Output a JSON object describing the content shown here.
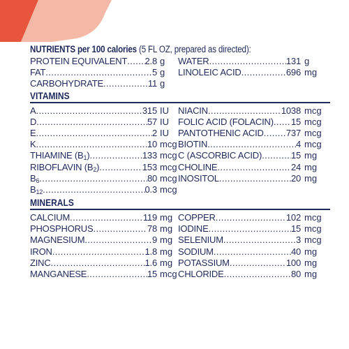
{
  "colors": {
    "text": "#1f2a5c",
    "accent": "#e8553f",
    "accent_light": "#f6c9b8"
  },
  "title": {
    "bold": "NUTRIENTS per 100 calories",
    "sub": " (5 FL OZ, prepared as directed):"
  },
  "nutrients": {
    "left": [
      {
        "name": "PROTEIN EQUIVALENT",
        "value": "2.8",
        "unit": "g"
      },
      {
        "name": "FAT",
        "value": "5",
        "unit": "g"
      },
      {
        "name": "CARBOHYDRATE",
        "value": "11",
        "unit": "g"
      }
    ],
    "right": [
      {
        "name": "WATER",
        "value": "131",
        "unit": "g"
      },
      {
        "name": "LINOLEIC ACID",
        "value": "696",
        "unit": "mg"
      }
    ]
  },
  "vitamins": {
    "heading": "VITAMINS",
    "left": [
      {
        "name": "A",
        "value": "315",
        "unit": "IU"
      },
      {
        "name": "D",
        "value": "57",
        "unit": "IU"
      },
      {
        "name": "E",
        "value": "2",
        "unit": "IU"
      },
      {
        "name": "K",
        "value": "10",
        "unit": "mcg"
      },
      {
        "name": "THIAMINE (B",
        "sub": "1",
        "name_end": ")",
        "value": "133",
        "unit": "mcg"
      },
      {
        "name": "RIBOFLAVIN (B",
        "sub": "2",
        "name_end": ")",
        "value": "153",
        "unit": "mcg"
      },
      {
        "name": "B",
        "sub": "6",
        "name_end": "",
        "value": "80",
        "unit": "mcg"
      },
      {
        "name": "B",
        "sub": "12",
        "name_end": "",
        "value": "0.3",
        "unit": "mcg"
      }
    ],
    "right": [
      {
        "name": "NIACIN",
        "value": "1038",
        "unit": "mcg"
      },
      {
        "name": "FOLIC ACID (FOLACIN)",
        "value": "15",
        "unit": "mcg"
      },
      {
        "name": "PANTOTHENIC ACID",
        "value": "737",
        "unit": "mcg"
      },
      {
        "name": "BIOTIN",
        "value": "4",
        "unit": "mcg"
      },
      {
        "name": "C (ASCORBIC ACID)",
        "value": "15",
        "unit": "mg"
      },
      {
        "name": "CHOLINE",
        "value": "24",
        "unit": "mg"
      },
      {
        "name": "INOSITOL",
        "value": "20",
        "unit": "mg"
      }
    ]
  },
  "minerals": {
    "heading": "MINERALS",
    "left": [
      {
        "name": "CALCIUM",
        "value": "119",
        "unit": "mg"
      },
      {
        "name": "PHOSPHORUS",
        "value": "78",
        "unit": "mg"
      },
      {
        "name": "MAGNESIUM",
        "value": "9",
        "unit": "mg"
      },
      {
        "name": "IRON",
        "value": "1.8",
        "unit": "mg"
      },
      {
        "name": "ZINC",
        "value": "1.6",
        "unit": "mg"
      },
      {
        "name": "MANGANESE",
        "value": "15",
        "unit": "mcg"
      }
    ],
    "right": [
      {
        "name": "COPPER",
        "value": "102",
        "unit": "mcg"
      },
      {
        "name": "IODINE",
        "value": "15",
        "unit": "mcg"
      },
      {
        "name": "SELENIUM",
        "value": "3",
        "unit": "mcg"
      },
      {
        "name": "SODIUM",
        "value": "40",
        "unit": "mg"
      },
      {
        "name": "POTASSIUM",
        "value": "100",
        "unit": "mg"
      },
      {
        "name": "CHLORIDE",
        "value": "80",
        "unit": "mg"
      }
    ]
  }
}
